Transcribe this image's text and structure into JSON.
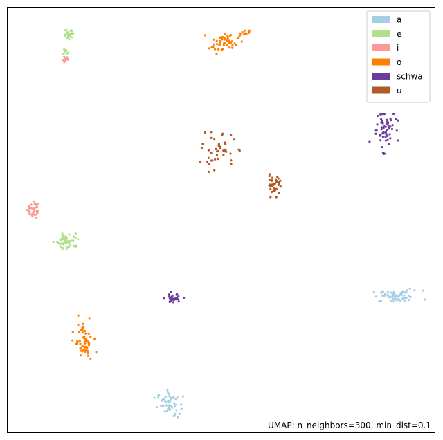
{
  "chart_data": {
    "type": "scatter",
    "title": "",
    "xlabel": "",
    "ylabel": "",
    "axes_visible": false,
    "grid": false,
    "legend_position": "top-right",
    "annotation": "UMAP: n_neighbors=300, min_dist=0.1",
    "xlim": [
      0,
      100
    ],
    "ylim": [
      0,
      100
    ],
    "series": [
      {
        "name": "a",
        "color": "#a6cee3",
        "clusters": [
          {
            "cx": 91.2,
            "cy": 32.0,
            "sx": 3.0,
            "sy": 0.7,
            "n": 60
          },
          {
            "cx": 37.7,
            "cy": 6.7,
            "sx": 1.3,
            "sy": 1.5,
            "n": 55
          }
        ]
      },
      {
        "name": "e",
        "color": "#b2df8a",
        "clusters": [
          {
            "cx": 14.1,
            "cy": 45.0,
            "sx": 1.3,
            "sy": 0.9,
            "n": 55
          },
          {
            "cx": 14.4,
            "cy": 93.9,
            "sx": 0.6,
            "sy": 0.7,
            "n": 25
          },
          {
            "cx": 13.7,
            "cy": 89.6,
            "sx": 0.5,
            "sy": 0.9,
            "n": 10
          }
        ]
      },
      {
        "name": "i",
        "color": "#fb9a99",
        "clusters": [
          {
            "cx": 5.8,
            "cy": 52.5,
            "sx": 0.6,
            "sy": 1.0,
            "n": 35
          },
          {
            "cx": 13.6,
            "cy": 87.8,
            "sx": 0.3,
            "sy": 0.4,
            "n": 8
          }
        ]
      },
      {
        "name": "o",
        "color": "#ff7f00",
        "clusters": [
          {
            "cx": 50.7,
            "cy": 91.7,
            "sx": 1.7,
            "sy": 1.1,
            "n": 55
          },
          {
            "cx": 55.6,
            "cy": 94.0,
            "sx": 0.9,
            "sy": 0.3,
            "n": 12
          },
          {
            "cx": 17.9,
            "cy": 21.5,
            "sx": 1.1,
            "sy": 2.3,
            "n": 60
          }
        ]
      },
      {
        "name": "schwa",
        "color": "#6a3d9a",
        "clusters": [
          {
            "cx": 88.0,
            "cy": 71.3,
            "sx": 1.3,
            "sy": 2.2,
            "n": 60
          },
          {
            "cx": 38.7,
            "cy": 31.5,
            "sx": 1.0,
            "sy": 0.6,
            "n": 35
          }
        ]
      },
      {
        "name": "u",
        "color": "#b15928",
        "clusters": [
          {
            "cx": 49.4,
            "cy": 66.2,
            "sx": 1.9,
            "sy": 2.0,
            "n": 45
          },
          {
            "cx": 62.5,
            "cy": 58.5,
            "sx": 0.8,
            "sy": 1.2,
            "n": 40
          }
        ]
      }
    ]
  }
}
